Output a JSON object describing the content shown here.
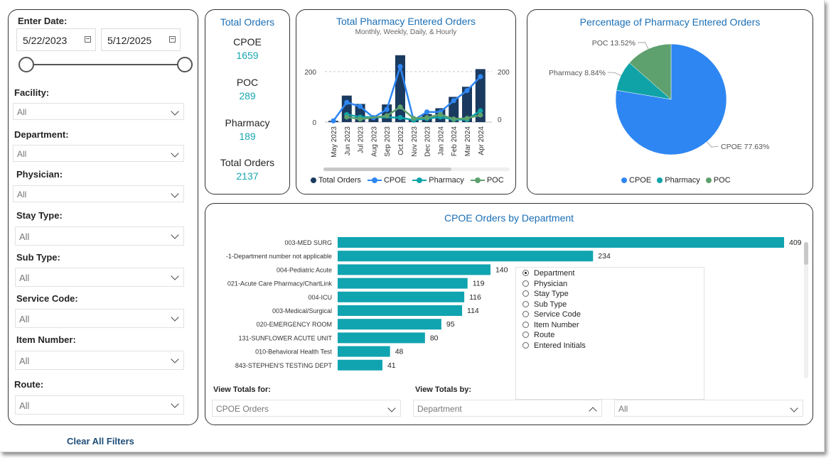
{
  "filters": {
    "date_label": "Enter Date:",
    "start_date": "5/22/2023",
    "end_date": "5/12/2025",
    "items": [
      {
        "label": "Facility:",
        "value": "All"
      },
      {
        "label": "Department:",
        "value": "All"
      },
      {
        "label": "Physician:",
        "value": "All"
      },
      {
        "label": "Stay Type:",
        "value": "All"
      },
      {
        "label": "Sub Type:",
        "value": "All"
      },
      {
        "label": "Service Code:",
        "value": "All"
      },
      {
        "label": "Item Number:",
        "value": "All"
      },
      {
        "label": "Route:",
        "value": "All"
      }
    ],
    "clear_label": "Clear All Filters"
  },
  "totals": {
    "title": "Total Orders",
    "kpis": [
      {
        "label": "CPOE",
        "value": "1659"
      },
      {
        "label": "POC",
        "value": "289"
      },
      {
        "label": "Pharmacy",
        "value": "189"
      },
      {
        "label": "Total Orders",
        "value": "2137"
      }
    ]
  },
  "combo": {
    "title": "Total Pharmacy Entered Orders",
    "subtitle": "Monthly, Weekly, Daily, & Hourly",
    "legend": [
      "Total Orders",
      "CPOE",
      "Pharmacy",
      "POC"
    ]
  },
  "pie": {
    "title": "Percentage of Pharmacy Entered Orders",
    "legend": [
      "CPOE",
      "Pharmacy",
      "POC"
    ]
  },
  "dept": {
    "title": "CPOE Orders by Department",
    "dimensions": [
      "Department",
      "Physician",
      "Stay Type",
      "Sub Type",
      "Service Code",
      "Item Number",
      "Route",
      "Entered Initials"
    ],
    "selected_dimension": "Department",
    "view_totals_for_label": "View Totals for:",
    "view_totals_for_value": "CPOE Orders",
    "view_totals_by_label": "View Totals by:",
    "view_totals_by_value": "Department",
    "extra_filter_value": "All"
  },
  "colors": {
    "total_orders": "#1b3a5f",
    "cpoe": "#2e86f2",
    "pharmacy": "#0fa3a8",
    "poc": "#5ea16e",
    "dept_bar": "#10a4b0",
    "title_blue": "#1a6fb5"
  },
  "chart_data": [
    {
      "type": "bar",
      "title": "Total Pharmacy Entered Orders",
      "subtitle": "Monthly, Weekly, Daily, & Hourly",
      "categories": [
        "May 2023",
        "Jun 2023",
        "Jul 2023",
        "Aug 2023",
        "Sep 2023",
        "Oct 2023",
        "Nov 2023",
        "Dec 2023",
        "Jan 2024",
        "Feb 2024",
        "Mar 2024",
        "Apr 2024"
      ],
      "series": [
        {
          "name": "Total Orders",
          "type": "bar",
          "axis": "left",
          "values": [
            5,
            105,
            72,
            22,
            70,
            265,
            12,
            32,
            55,
            100,
            140,
            210
          ]
        },
        {
          "name": "CPOE",
          "type": "line",
          "axis": "right",
          "values": [
            5,
            78,
            62,
            18,
            50,
            220,
            8,
            40,
            40,
            85,
            125,
            180
          ]
        },
        {
          "name": "Pharmacy",
          "type": "line",
          "axis": "right",
          "values": [
            null,
            30,
            20,
            null,
            null,
            18,
            8,
            14,
            20,
            10,
            10,
            45
          ]
        },
        {
          "name": "POC",
          "type": "line",
          "axis": "right",
          "values": [
            null,
            20,
            12,
            null,
            25,
            60,
            15,
            18,
            30,
            12,
            15,
            28
          ]
        }
      ],
      "y_ticks_left": [
        "0",
        "200"
      ],
      "y_ticks_right": [
        "0",
        "200"
      ],
      "ylim": [
        0,
        270
      ]
    },
    {
      "type": "pie",
      "title": "Percentage of Pharmacy Entered Orders",
      "slices": [
        {
          "label": "CPOE",
          "value": 77.63,
          "text": "CPOE 77.63%"
        },
        {
          "label": "Pharmacy",
          "value": 8.84,
          "text": "Pharmacy 8.84%"
        },
        {
          "label": "POC",
          "value": 13.52,
          "text": "POC 13.52%"
        }
      ]
    },
    {
      "type": "bar",
      "orientation": "horizontal",
      "title": "CPOE Orders by Department",
      "categories": [
        "003-MED SURG",
        "-1-Department number not applicable",
        "004-Pediatric Acute",
        "021-Acute Care Pharmacy/ChartLink",
        "004-ICU",
        "003-Medical/Surgical",
        "020-EMERGENCY ROOM",
        "131-SUNFLOWER ACUTE UNIT",
        "010-Behavioral Health Test",
        "843-STEPHEN'S TESTING DEPT"
      ],
      "values": [
        409,
        234,
        140,
        119,
        116,
        114,
        95,
        80,
        48,
        41
      ],
      "xlim": [
        0,
        409
      ]
    }
  ]
}
